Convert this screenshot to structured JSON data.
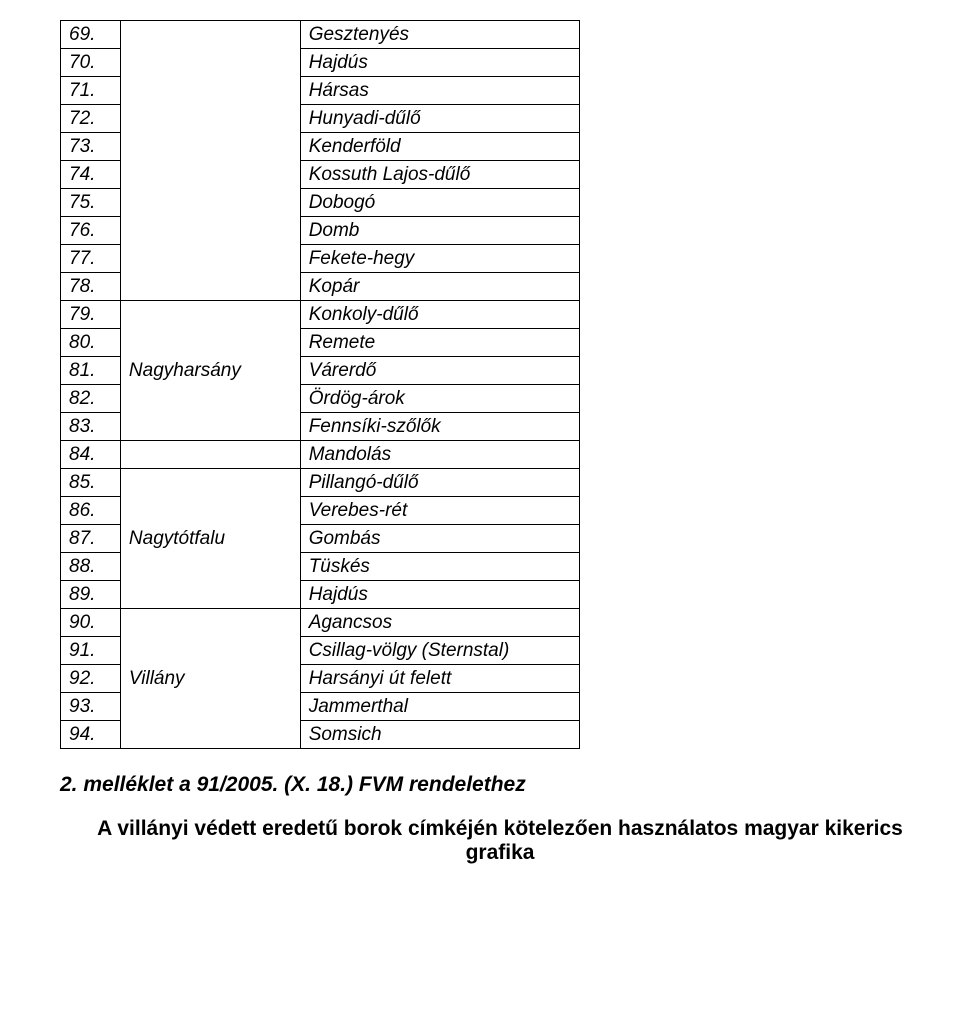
{
  "table": {
    "columns": {
      "num_width": 60,
      "region_width": 180,
      "place_width": 280
    },
    "regions": [
      {
        "name": "",
        "start": 69,
        "end": 78
      },
      {
        "name": "Nagyharsány",
        "start": 79,
        "end": 83
      },
      {
        "name": "",
        "start": 84,
        "end": 84
      },
      {
        "name": "Nagytótfalu",
        "start": 85,
        "end": 89
      },
      {
        "name": "Villány",
        "start": 90,
        "end": 94
      }
    ],
    "rows": [
      {
        "num": "69.",
        "place": "Gesztenyés"
      },
      {
        "num": "70.",
        "place": "Hajdús"
      },
      {
        "num": "71.",
        "place": "Hársas"
      },
      {
        "num": "72.",
        "place": "Hunyadi-dűlő"
      },
      {
        "num": "73.",
        "place": "Kenderföld"
      },
      {
        "num": "74.",
        "place": "Kossuth Lajos-dűlő"
      },
      {
        "num": "75.",
        "place": "Dobogó"
      },
      {
        "num": "76.",
        "place": "Domb"
      },
      {
        "num": "77.",
        "place": "Fekete-hegy"
      },
      {
        "num": "78.",
        "place": "Kopár"
      },
      {
        "num": "79.",
        "place": "Konkoly-dűlő"
      },
      {
        "num": "80.",
        "place": "Remete"
      },
      {
        "num": "81.",
        "place": "Várerdő"
      },
      {
        "num": "82.",
        "place": "Ördög-árok"
      },
      {
        "num": "83.",
        "place": "Fennsíki-szőlők"
      },
      {
        "num": "84.",
        "place": "Mandolás"
      },
      {
        "num": "85.",
        "place": "Pillangó-dűlő"
      },
      {
        "num": "86.",
        "place": "Verebes-rét"
      },
      {
        "num": "87.",
        "place": "Gombás"
      },
      {
        "num": "88.",
        "place": "Tüskés"
      },
      {
        "num": "89.",
        "place": "Hajdús"
      },
      {
        "num": "90.",
        "place": "Agancsos"
      },
      {
        "num": "91.",
        "place": "Csillag-völgy (Sternstal)"
      },
      {
        "num": "92.",
        "place": "Harsányi út felett"
      },
      {
        "num": "93.",
        "place": "Jammerthal"
      },
      {
        "num": "94.",
        "place": "Somsich"
      }
    ]
  },
  "footer": {
    "title": "2. melléklet a 91/2005. (X. 18.) FVM rendelethez",
    "text": "A villányi védett eredetű borok címkéjén kötelezően használatos magyar kikerics grafika"
  },
  "colors": {
    "background": "#ffffff",
    "text": "#000000",
    "border": "#000000"
  },
  "typography": {
    "table_font": "Verdana",
    "table_fontsize": 19,
    "table_style": "italic",
    "footer_font": "Arial",
    "footer_fontsize": 21,
    "footer_title_style": "bold italic",
    "footer_text_style": "bold"
  }
}
